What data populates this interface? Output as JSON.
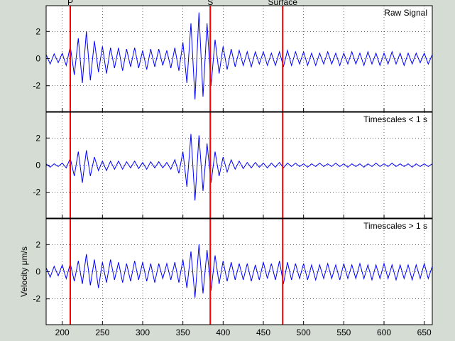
{
  "chart_data": [
    {
      "type": "line",
      "annotation": "Raw Signal",
      "color": "#0000ff",
      "xlim": [
        180,
        660
      ],
      "xticks": [
        200,
        250,
        300,
        350,
        400,
        450,
        500,
        550,
        600,
        650
      ],
      "ylim": [
        -3.9,
        3.9
      ],
      "yticks": [
        -2,
        0,
        2
      ],
      "grid": true,
      "markers": [
        {
          "label": "P",
          "x": 210
        },
        {
          "label": "S",
          "x": 384
        },
        {
          "label": "Surface",
          "x": 474
        }
      ],
      "marker_color": "#ff0000",
      "x": [
        180,
        185,
        190,
        195,
        200,
        205,
        210,
        215,
        220,
        225,
        230,
        235,
        240,
        245,
        250,
        255,
        260,
        265,
        270,
        275,
        280,
        285,
        290,
        295,
        300,
        305,
        310,
        315,
        320,
        325,
        330,
        335,
        340,
        345,
        350,
        355,
        360,
        365,
        370,
        375,
        380,
        385,
        390,
        395,
        400,
        405,
        410,
        415,
        420,
        425,
        430,
        435,
        440,
        445,
        450,
        455,
        460,
        465,
        470,
        475,
        480,
        485,
        490,
        495,
        500,
        505,
        510,
        515,
        520,
        525,
        530,
        535,
        540,
        545,
        550,
        555,
        560,
        565,
        570,
        575,
        580,
        585,
        590,
        595,
        600,
        605,
        610,
        615,
        620,
        625,
        630,
        635,
        640,
        645,
        650,
        655,
        660
      ],
      "values": [
        0.3,
        -0.4,
        0.35,
        -0.3,
        0.4,
        -0.5,
        0.9,
        -1.2,
        1.5,
        -1.8,
        2.0,
        -1.6,
        1.3,
        -1.0,
        0.9,
        -1.1,
        0.8,
        -0.7,
        0.8,
        -0.9,
        0.7,
        -0.6,
        0.8,
        -0.7,
        0.6,
        -0.8,
        0.7,
        -0.6,
        0.7,
        -0.5,
        0.6,
        -0.7,
        0.8,
        -0.9,
        1.2,
        -1.8,
        2.6,
        -3.0,
        3.4,
        -2.8,
        2.6,
        -2.0,
        1.4,
        -1.1,
        0.9,
        -0.8,
        0.7,
        -0.6,
        0.6,
        -0.5,
        0.5,
        -0.6,
        0.5,
        -0.4,
        0.5,
        -0.5,
        0.4,
        -0.5,
        0.5,
        -0.6,
        0.6,
        -0.5,
        0.5,
        -0.4,
        0.5,
        -0.5,
        0.4,
        -0.5,
        0.4,
        -0.4,
        0.5,
        -0.4,
        0.4,
        -0.5,
        0.4,
        -0.4,
        0.5,
        -0.4,
        0.4,
        -0.5,
        0.5,
        -0.4,
        0.4,
        -0.5,
        0.4,
        -0.4,
        0.5,
        -0.4,
        0.4,
        -0.5,
        0.4,
        -0.4,
        0.4,
        -0.3,
        0.4,
        -0.4,
        0.3
      ]
    },
    {
      "type": "line",
      "annotation": "Timescales < 1 s",
      "color": "#0000ff",
      "xlim": [
        180,
        660
      ],
      "xticks": [
        200,
        250,
        300,
        350,
        400,
        450,
        500,
        550,
        600,
        650
      ],
      "ylim": [
        -3.9,
        3.9
      ],
      "yticks": [
        -2,
        0,
        2
      ],
      "grid": true,
      "markers": [
        {
          "x": 210
        },
        {
          "x": 384
        },
        {
          "x": 474
        }
      ],
      "marker_color": "#ff0000",
      "x": [
        180,
        185,
        190,
        195,
        200,
        205,
        210,
        215,
        220,
        225,
        230,
        235,
        240,
        245,
        250,
        255,
        260,
        265,
        270,
        275,
        280,
        285,
        290,
        295,
        300,
        305,
        310,
        315,
        320,
        325,
        330,
        335,
        340,
        345,
        350,
        355,
        360,
        365,
        370,
        375,
        380,
        385,
        390,
        395,
        400,
        405,
        410,
        415,
        420,
        425,
        430,
        435,
        440,
        445,
        450,
        455,
        460,
        465,
        470,
        475,
        480,
        485,
        490,
        495,
        500,
        505,
        510,
        515,
        520,
        525,
        530,
        535,
        540,
        545,
        550,
        555,
        560,
        565,
        570,
        575,
        580,
        585,
        590,
        595,
        600,
        605,
        610,
        615,
        620,
        625,
        630,
        635,
        640,
        645,
        650,
        655,
        660
      ],
      "values": [
        0.1,
        -0.15,
        0.1,
        -0.1,
        0.15,
        -0.2,
        0.5,
        -0.8,
        1.0,
        -1.3,
        1.1,
        -0.8,
        0.6,
        -0.4,
        0.3,
        -0.4,
        0.3,
        -0.3,
        0.3,
        -0.3,
        0.25,
        -0.2,
        0.3,
        -0.25,
        0.2,
        -0.3,
        0.25,
        -0.2,
        0.25,
        -0.2,
        0.2,
        -0.3,
        0.4,
        -0.6,
        1.0,
        -1.6,
        2.3,
        -2.6,
        2.2,
        -1.9,
        1.6,
        -1.3,
        1.0,
        -0.8,
        0.6,
        -0.5,
        0.4,
        -0.3,
        0.3,
        -0.25,
        0.2,
        -0.2,
        0.2,
        -0.15,
        0.15,
        -0.2,
        0.15,
        -0.15,
        0.2,
        -0.2,
        0.15,
        -0.1,
        0.15,
        -0.1,
        0.1,
        -0.15,
        0.1,
        -0.1,
        0.15,
        -0.1,
        0.1,
        -0.1,
        0.15,
        -0.1,
        0.1,
        -0.15,
        0.1,
        -0.1,
        0.1,
        -0.15,
        0.1,
        -0.1,
        0.15,
        -0.1,
        0.1,
        -0.1,
        0.15,
        -0.1,
        0.1,
        -0.1,
        0.1,
        -0.15,
        0.1,
        -0.1,
        0.1,
        -0.1,
        0.1
      ]
    },
    {
      "type": "line",
      "annotation": "Timescales > 1 s",
      "ylabel": "Velocity μm/s",
      "color": "#0000ff",
      "xlim": [
        180,
        660
      ],
      "xticks": [
        200,
        250,
        300,
        350,
        400,
        450,
        500,
        550,
        600,
        650
      ],
      "ylim": [
        -3.9,
        3.9
      ],
      "yticks": [
        -2,
        0,
        2
      ],
      "grid": true,
      "show_xtick_labels": true,
      "markers": [
        {
          "x": 210
        },
        {
          "x": 384
        },
        {
          "x": 474
        }
      ],
      "marker_color": "#ff0000",
      "x": [
        180,
        185,
        190,
        195,
        200,
        205,
        210,
        215,
        220,
        225,
        230,
        235,
        240,
        245,
        250,
        255,
        260,
        265,
        270,
        275,
        280,
        285,
        290,
        295,
        300,
        305,
        310,
        315,
        320,
        325,
        330,
        335,
        340,
        345,
        350,
        355,
        360,
        365,
        370,
        375,
        380,
        385,
        390,
        395,
        400,
        405,
        410,
        415,
        420,
        425,
        430,
        435,
        440,
        445,
        450,
        455,
        460,
        465,
        470,
        475,
        480,
        485,
        490,
        495,
        500,
        505,
        510,
        515,
        520,
        525,
        530,
        535,
        540,
        545,
        550,
        555,
        560,
        565,
        570,
        575,
        580,
        585,
        590,
        595,
        600,
        605,
        610,
        615,
        620,
        625,
        630,
        635,
        640,
        645,
        650,
        655,
        660
      ],
      "values": [
        0.3,
        -0.4,
        0.4,
        -0.3,
        0.5,
        -0.5,
        0.6,
        -0.7,
        0.8,
        -0.9,
        1.3,
        -1.0,
        0.9,
        -1.2,
        0.7,
        -0.8,
        0.9,
        -0.6,
        0.7,
        -0.8,
        0.6,
        -0.7,
        0.8,
        -0.6,
        0.7,
        -0.7,
        0.6,
        -0.8,
        0.6,
        -0.5,
        0.6,
        -0.6,
        0.7,
        -0.8,
        0.9,
        -1.2,
        1.5,
        -1.9,
        2.0,
        -1.6,
        1.6,
        -1.4,
        1.2,
        -0.9,
        0.8,
        -0.7,
        0.7,
        -0.6,
        0.6,
        -0.6,
        0.6,
        -0.7,
        0.5,
        -0.6,
        0.7,
        -0.5,
        0.6,
        -0.6,
        0.8,
        -0.9,
        0.7,
        -0.6,
        0.6,
        -0.5,
        0.6,
        -0.6,
        0.5,
        -0.6,
        0.5,
        -0.5,
        0.6,
        -0.5,
        0.5,
        -0.6,
        0.6,
        -0.5,
        0.5,
        -0.5,
        0.6,
        -0.5,
        0.5,
        -0.6,
        0.5,
        -0.5,
        0.6,
        -0.5,
        0.5,
        -0.6,
        0.5,
        -0.5,
        0.5,
        -0.6,
        0.5,
        -0.5,
        0.6,
        -0.5,
        0.4
      ]
    }
  ]
}
